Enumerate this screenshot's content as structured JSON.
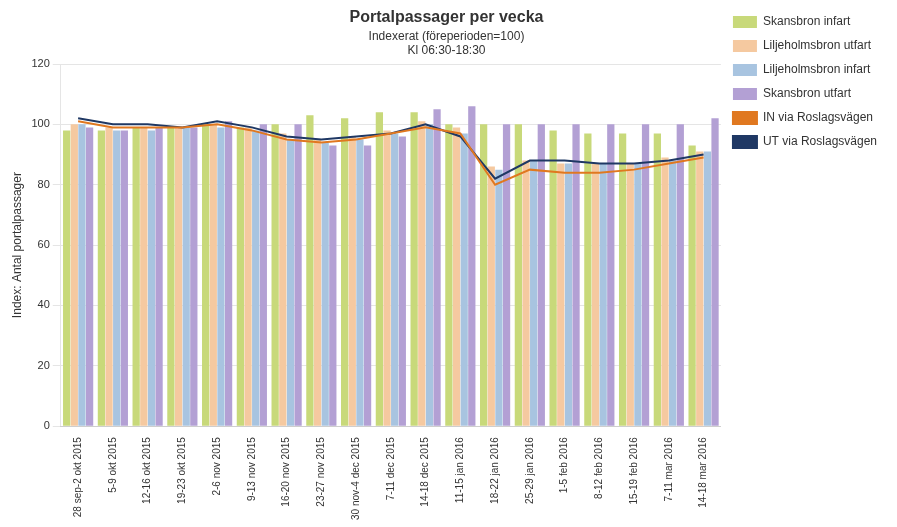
{
  "chart_data": {
    "type": "bar",
    "title": "Portalpassager per vecka",
    "subtitle": [
      "Indexerat (föreperioden=100)",
      "Kl 06:30-18:30"
    ],
    "y_label": "Index: Antal portalpassager",
    "ylim": [
      0,
      120
    ],
    "yticks": [
      0,
      20,
      40,
      60,
      80,
      100,
      120
    ],
    "grid": true,
    "legend": "right",
    "categories": [
      "28 sep-2 okt 2015",
      "5-9 okt 2015",
      "12-16 okt 2015",
      "19-23 okt 2015",
      "2-6 nov 2015",
      "9-13 nov 2015",
      "16-20 nov 2015",
      "23-27 nov 2015",
      "30 nov-4 dec 2015",
      "7-11 dec 2015",
      "14-18 dec 2015",
      "11-15 jan 2016",
      "18-22 jan 2016",
      "25-29 jan 2016",
      "1-5 feb 2016",
      "8-12 feb 2016",
      "15-19 feb 2016",
      "7-11 mar 2016",
      "14-18 mar 2016"
    ],
    "series": [
      {
        "name": "Skansbron infart",
        "type": "bar",
        "color": "#c8d97a",
        "values": [
          98,
          98,
          99,
          99,
          100,
          99,
          100,
          103,
          102,
          104,
          104,
          100,
          100,
          100,
          98,
          97,
          97,
          97,
          93
        ]
      },
      {
        "name": "Liljeholmsbron utfart",
        "type": "bar",
        "color": "#f5c9a0",
        "values": [
          100,
          99,
          99,
          99,
          100,
          99,
          97,
          95,
          96,
          98,
          101,
          99,
          86,
          88,
          87,
          87,
          87,
          89,
          91
        ]
      },
      {
        "name": "Liljeholmsbron infart",
        "type": "bar",
        "color": "#a8c4e0",
        "values": [
          100,
          98,
          98,
          99,
          99,
          98,
          95,
          94,
          95,
          97,
          100,
          97,
          85,
          88,
          87,
          87,
          87,
          88,
          91
        ]
      },
      {
        "name": "Skansbron utfart",
        "type": "bar",
        "color": "#b3a0d4",
        "values": [
          99,
          98,
          99,
          99,
          101,
          100,
          100,
          93,
          93,
          96,
          105,
          106,
          100,
          100,
          100,
          100,
          100,
          100,
          102
        ]
      },
      {
        "name": "IN via Roslagsvägen",
        "type": "line",
        "color": "#e07820",
        "values": [
          101,
          99,
          99,
          99,
          100,
          98,
          95,
          94,
          95,
          97,
          99,
          97,
          80,
          85,
          84,
          84,
          85,
          87,
          89
        ]
      },
      {
        "name": "UT via Roslagsvägen",
        "type": "line",
        "color": "#1f3864",
        "values": [
          102,
          100,
          100,
          99,
          101,
          99,
          96,
          95,
          96,
          97,
          100,
          96,
          82,
          88,
          88,
          87,
          87,
          88,
          90
        ]
      }
    ]
  }
}
